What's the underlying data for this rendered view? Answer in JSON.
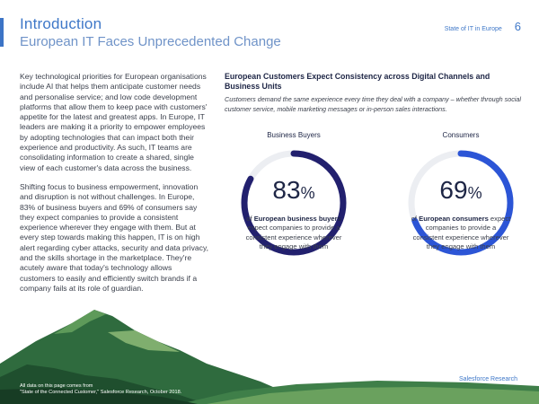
{
  "header": {
    "title": "Introduction",
    "subtitle": "European IT Faces Unprecedented Change",
    "report_name": "State of IT in Europe",
    "page_number": "6"
  },
  "body": {
    "paragraph_1": "Key technological priorities for European organisations include AI that helps them anticipate customer needs and personalise service; and low code development platforms that allow them to keep pace with customers' appetite for the latest and greatest apps. In Europe, IT leaders are making it a priority to empower employees by adopting technologies that can impact both their experience and productivity. As such, IT teams are consolidating information to create a shared, single view of each customer's data across the business.",
    "paragraph_2": "Shifting focus to business empowerment, innovation and disruption is not without challenges. In Europe, 83% of business buyers and 69% of consumers say they expect companies to provide a consistent experience wherever they engage with them. But at every step towards making this happen, IT is on high alert regarding cyber attacks, security and data privacy, and the skills shortage in the marketplace. They're acutely aware that today's technology allows customers to easily and efficiently switch brands if a company fails at its role of guardian."
  },
  "infographic": {
    "heading": "European Customers Expect Consistency across Digital Channels and Business Units",
    "description": "Customers demand the same experience every time they deal with a company – whether through social customer service, mobile marketing messages or in-person sales interactions.",
    "stats": [
      {
        "label": "Business Buyers",
        "value": 83,
        "percent_text": "83",
        "percent_symbol": "%",
        "lead": "of ",
        "bold": "European business buyers",
        "rest": " expect companies to provide a consistent experience wherever they engage with them",
        "ring_color": "#22206e"
      },
      {
        "label": "Consumers",
        "value": 69,
        "percent_text": "69",
        "percent_symbol": "%",
        "lead": "of ",
        "bold": "European consumers",
        "rest": " expect companies to provide a consistent experience wherever they engage with them",
        "ring_color": "#2c55d6"
      }
    ],
    "track_color": "#eceef2"
  },
  "footer": {
    "brand": "Salesforce Research",
    "footnote_line_1": "All data on this page comes from",
    "footnote_line_2": "\"State of the Connected Customer,\" Salesforce Research, October 2018."
  }
}
